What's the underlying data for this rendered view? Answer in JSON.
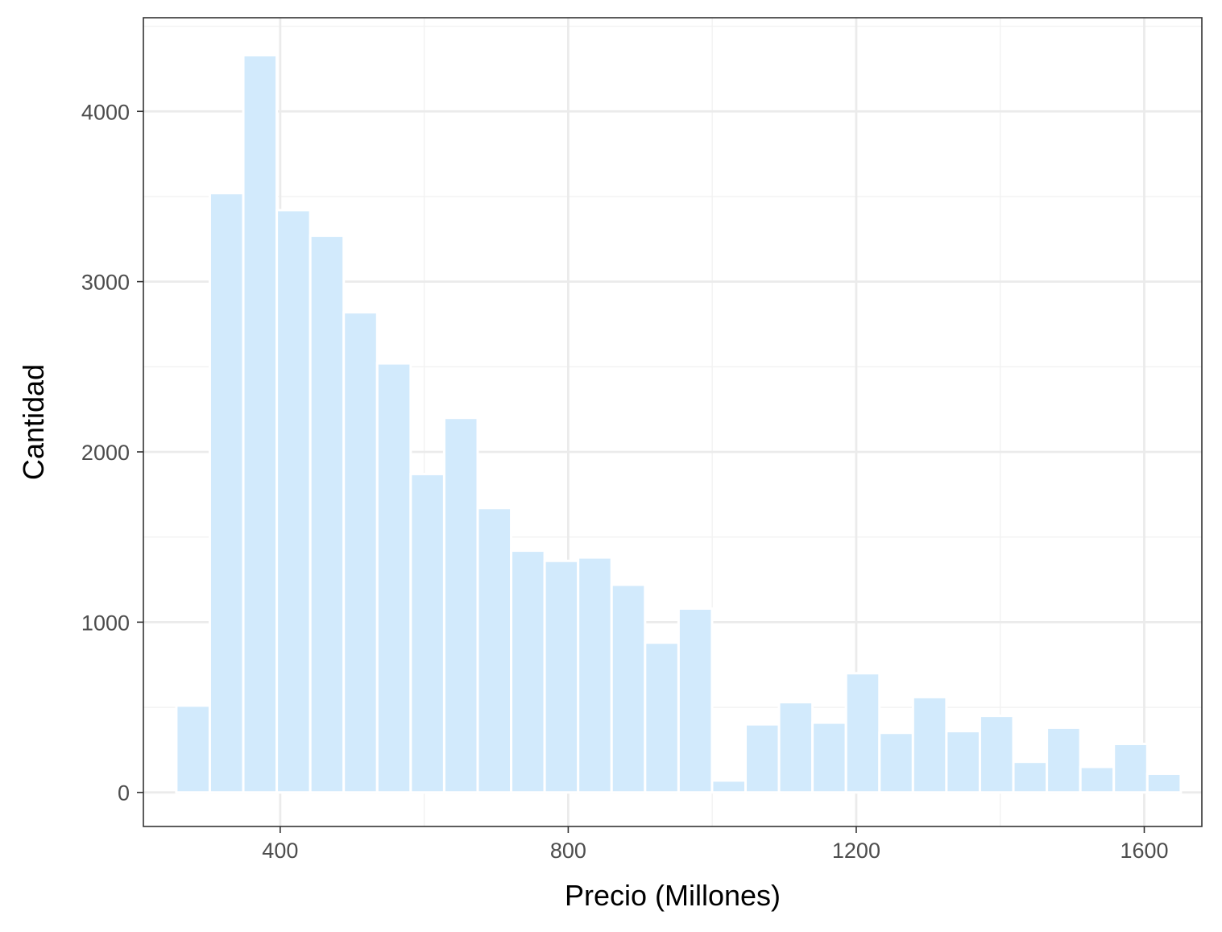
{
  "chart_data": {
    "type": "bar",
    "title": "",
    "xlabel": "Precio (Millones)",
    "ylabel": "Cantidad",
    "xlim": [
      210,
      1680
    ],
    "ylim": [
      -200,
      4550
    ],
    "x_ticks": [
      400,
      800,
      1200,
      1600
    ],
    "y_ticks": [
      0,
      1000,
      2000,
      3000,
      4000
    ],
    "grid": true,
    "bin_width": 46.5,
    "bins": [
      {
        "x": 279,
        "count": 510
      },
      {
        "x": 325.5,
        "count": 3520
      },
      {
        "x": 372,
        "count": 4330
      },
      {
        "x": 418.5,
        "count": 3420
      },
      {
        "x": 465,
        "count": 3270
      },
      {
        "x": 511.5,
        "count": 2820
      },
      {
        "x": 558,
        "count": 2520
      },
      {
        "x": 604.5,
        "count": 1870
      },
      {
        "x": 651,
        "count": 2200
      },
      {
        "x": 697.5,
        "count": 1670
      },
      {
        "x": 744,
        "count": 1420
      },
      {
        "x": 790.5,
        "count": 1360
      },
      {
        "x": 837,
        "count": 1380
      },
      {
        "x": 883.5,
        "count": 1220
      },
      {
        "x": 930,
        "count": 880
      },
      {
        "x": 976.5,
        "count": 1080
      },
      {
        "x": 1023,
        "count": 70
      },
      {
        "x": 1069.5,
        "count": 400
      },
      {
        "x": 1116,
        "count": 530
      },
      {
        "x": 1162.5,
        "count": 410
      },
      {
        "x": 1209,
        "count": 700
      },
      {
        "x": 1255.5,
        "count": 350
      },
      {
        "x": 1302,
        "count": 560
      },
      {
        "x": 1348.5,
        "count": 360
      },
      {
        "x": 1395,
        "count": 450
      },
      {
        "x": 1441.5,
        "count": 180
      },
      {
        "x": 1488,
        "count": 380
      },
      {
        "x": 1534.5,
        "count": 150
      },
      {
        "x": 1581,
        "count": 285
      },
      {
        "x": 1627.5,
        "count": 110
      }
    ],
    "colors": {
      "bar_fill": "#d2eafc",
      "bar_stroke": "#ffffff",
      "grid_major": "#ebebeb",
      "grid_minor": "#f2f2f2",
      "panel_border": "#333333"
    }
  }
}
